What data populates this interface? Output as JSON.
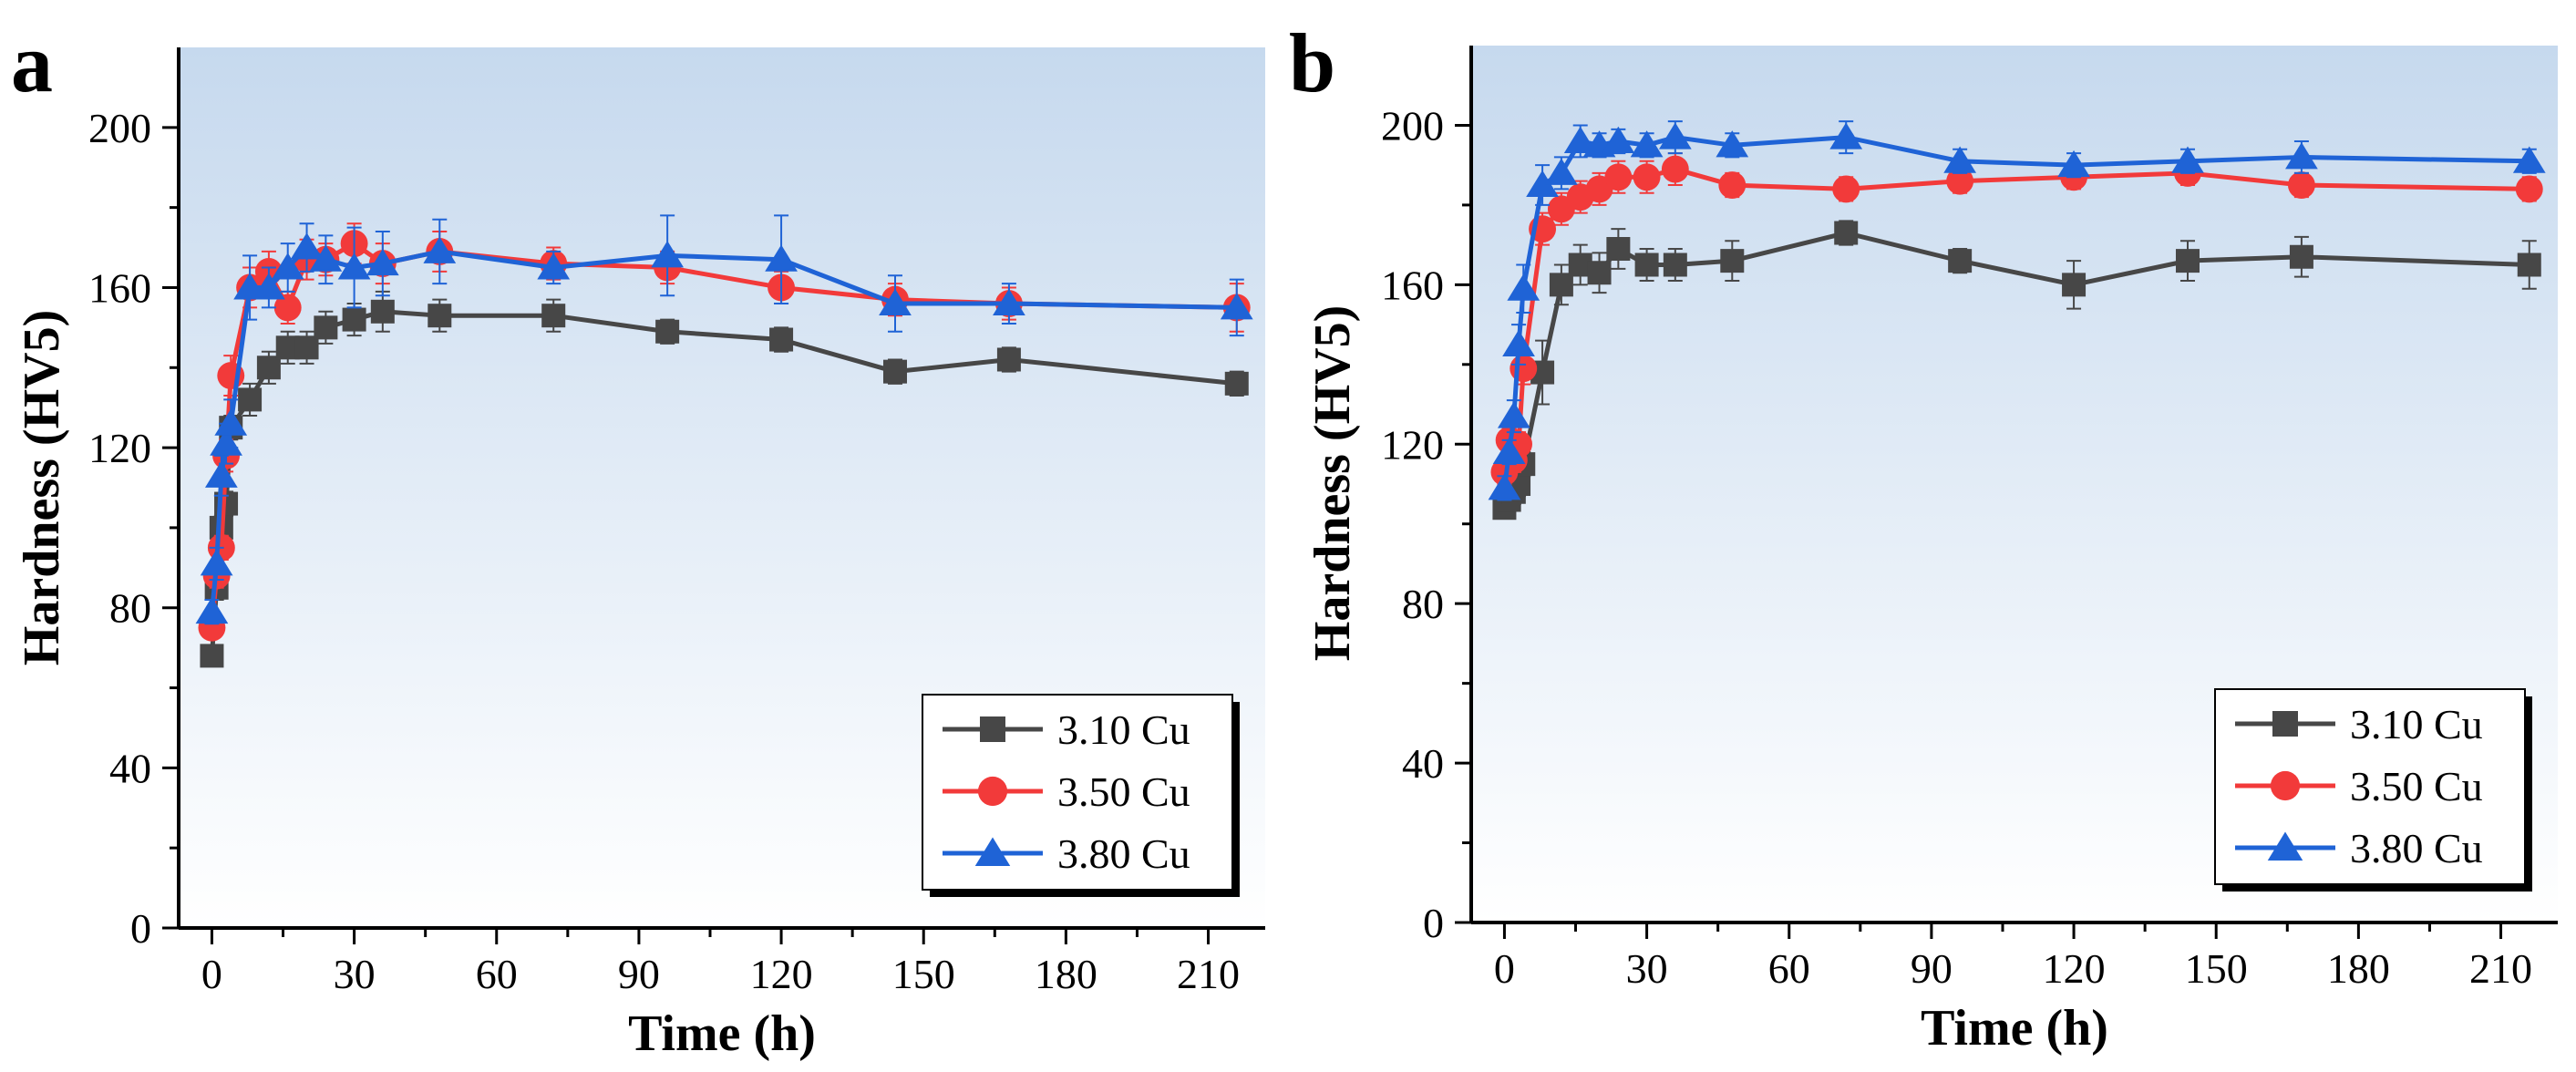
{
  "figure": {
    "panels": [
      "a",
      "b"
    ]
  },
  "chart_data": [
    {
      "type": "line",
      "panel_label": "a",
      "xlabel": "Time (h)",
      "ylabel": "Hardness (HV5)",
      "xlim": [
        -7,
        222
      ],
      "ylim": [
        0,
        220
      ],
      "xticks": [
        0,
        30,
        60,
        90,
        120,
        150,
        180,
        210
      ],
      "yticks": [
        0,
        40,
        80,
        120,
        160,
        200
      ],
      "legend_position": "bottom-right",
      "series": [
        {
          "name": "3.10 Cu",
          "color": "#474747",
          "marker": "square",
          "x": [
            0,
            1,
            2,
            3,
            4,
            8,
            12,
            16,
            20,
            24,
            30,
            36,
            48,
            72,
            96,
            120,
            144,
            168,
            216
          ],
          "y": [
            68,
            85,
            100,
            106,
            125,
            132,
            140,
            145,
            145,
            150,
            152,
            154,
            153,
            153,
            149,
            147,
            139,
            142,
            136
          ],
          "err": [
            2,
            3,
            3,
            3,
            3,
            4,
            4,
            4,
            4,
            4,
            4,
            5,
            4,
            4,
            3,
            3,
            3,
            3,
            3
          ]
        },
        {
          "name": "3.50 Cu",
          "color": "#f23a3a",
          "marker": "circle",
          "x": [
            0,
            1,
            2,
            3,
            4,
            8,
            12,
            16,
            20,
            24,
            30,
            36,
            48,
            72,
            96,
            120,
            144,
            168,
            216
          ],
          "y": [
            75,
            88,
            95,
            118,
            138,
            160,
            164,
            155,
            167,
            167,
            171,
            166,
            169,
            166,
            165,
            160,
            157,
            156,
            155
          ],
          "err": [
            2,
            3,
            3,
            4,
            5,
            5,
            5,
            4,
            5,
            4,
            5,
            5,
            5,
            4,
            4,
            4,
            4,
            4,
            6
          ]
        },
        {
          "name": "3.80 Cu",
          "color": "#1f63d6",
          "marker": "triangle",
          "x": [
            0,
            1,
            2,
            3,
            4,
            8,
            12,
            16,
            20,
            24,
            30,
            36,
            48,
            72,
            96,
            120,
            144,
            168,
            216
          ],
          "y": [
            79,
            91,
            113,
            121,
            126,
            160,
            160,
            165,
            170,
            167,
            165,
            166,
            169,
            165,
            168,
            167,
            156,
            156,
            155
          ],
          "err": [
            3,
            4,
            5,
            5,
            6,
            8,
            5,
            6,
            6,
            6,
            10,
            8,
            8,
            4,
            10,
            11,
            7,
            5,
            7
          ]
        }
      ]
    },
    {
      "type": "line",
      "panel_label": "b",
      "xlabel": "Time (h)",
      "ylabel": "Hardness (HV5)",
      "xlim": [
        -7,
        222
      ],
      "ylim": [
        0,
        220
      ],
      "xticks": [
        0,
        30,
        60,
        90,
        120,
        150,
        180,
        210
      ],
      "yticks": [
        0,
        40,
        80,
        120,
        160,
        200
      ],
      "legend_position": "bottom-right",
      "series": [
        {
          "name": "3.10 Cu",
          "color": "#474747",
          "marker": "square",
          "x": [
            0,
            1,
            2,
            3,
            4,
            8,
            12,
            16,
            20,
            24,
            30,
            36,
            48,
            72,
            96,
            120,
            144,
            168,
            216
          ],
          "y": [
            104,
            106,
            108,
            110,
            115,
            138,
            160,
            165,
            163,
            169,
            165,
            165,
            166,
            173,
            166,
            160,
            166,
            167,
            165
          ],
          "err": [
            2,
            2,
            3,
            3,
            3,
            8,
            5,
            5,
            5,
            5,
            4,
            4,
            5,
            3,
            3,
            6,
            5,
            5,
            6
          ]
        },
        {
          "name": "3.50 Cu",
          "color": "#f23a3a",
          "marker": "circle",
          "x": [
            0,
            1,
            2,
            3,
            4,
            8,
            12,
            16,
            20,
            24,
            30,
            36,
            48,
            72,
            96,
            120,
            144,
            168,
            216
          ],
          "y": [
            113,
            121,
            116,
            120,
            139,
            174,
            179,
            182,
            184,
            187,
            187,
            189,
            185,
            184,
            186,
            187,
            188,
            185,
            184
          ],
          "err": [
            3,
            3,
            3,
            3,
            4,
            4,
            4,
            4,
            4,
            4,
            4,
            4,
            3,
            3,
            3,
            3,
            3,
            3,
            3
          ]
        },
        {
          "name": "3.80 Cu",
          "color": "#1f63d6",
          "marker": "triangle",
          "x": [
            0,
            1,
            2,
            3,
            4,
            8,
            12,
            16,
            20,
            24,
            30,
            36,
            48,
            72,
            96,
            120,
            144,
            168,
            216
          ],
          "y": [
            109,
            118,
            127,
            145,
            159,
            185,
            188,
            196,
            195,
            196,
            195,
            197,
            195,
            197,
            191,
            190,
            191,
            192,
            191
          ],
          "err": [
            3,
            3,
            4,
            5,
            6,
            5,
            4,
            4,
            3,
            3,
            3,
            4,
            3,
            4,
            3,
            3,
            3,
            4,
            3
          ]
        }
      ]
    }
  ]
}
